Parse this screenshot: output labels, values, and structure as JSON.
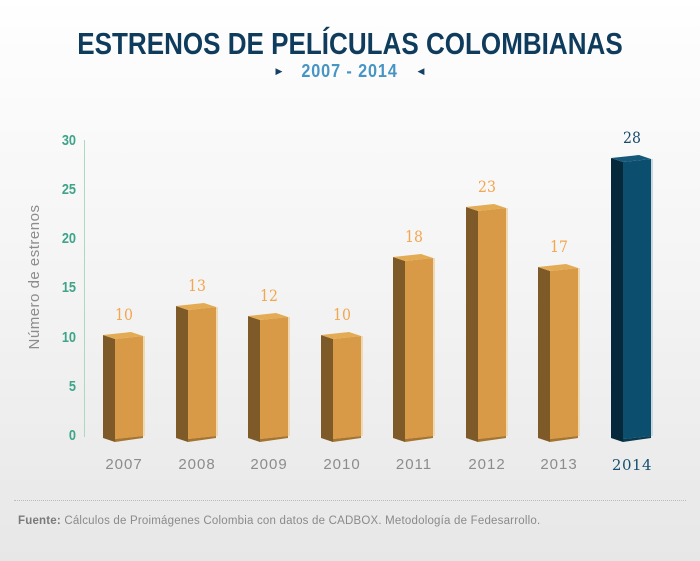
{
  "header": {
    "title": "ESTRENOS DE PELÍCULAS COLOMBIANAS",
    "subtitle": "2007 - 2014",
    "arrow_right": "▶",
    "arrow_left": "◀"
  },
  "chart_data": {
    "type": "bar",
    "title": "Estrenos de películas colombianas 2007 - 2014",
    "categories": [
      "2007",
      "2008",
      "2009",
      "2010",
      "2011",
      "2012",
      "2013",
      "2014"
    ],
    "values": [
      10,
      13,
      12,
      10,
      18,
      23,
      17,
      28
    ],
    "highlight_category": "2014",
    "xlabel": "",
    "ylabel": "Número de estrenos",
    "ylim": [
      0,
      30
    ],
    "yticks": [
      0,
      5,
      10,
      15,
      20,
      25,
      30
    ],
    "grid": "off",
    "legend": "none",
    "palette": {
      "bar_front": "#d99a47",
      "bar_side": "#7d5a28",
      "bar_top": "#e3ab54",
      "bar_bevel": "#a5752f",
      "bar_edge": "#efd9b5",
      "highlight_front": "#0b4e6d",
      "highlight_side": "#05293b",
      "highlight_top": "#16587a",
      "highlight_bevel": "#083a50",
      "highlight_edge": "#c9d8df",
      "value_label": "#f2a64e",
      "highlight_value_label": "#174a6b",
      "tick_label": "#3fa489",
      "axis_line": "#afd8c2",
      "year_label": "#8c8c8c",
      "highlight_year_label": "#17506f",
      "title": "#0f3c5d",
      "subtitle": "#4695c4"
    }
  },
  "footer": {
    "source_label": "Fuente:",
    "source_text": " Cálculos de Proimágenes Colombia con datos de CADBOX. Metodología de Fedesarrollo."
  }
}
